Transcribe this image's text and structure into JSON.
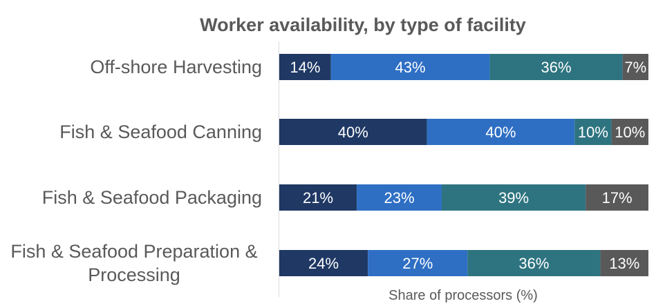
{
  "chart_data": {
    "type": "bar",
    "orientation": "horizontal",
    "stacked": true,
    "title": "Worker availability, by type of facility",
    "xlabel": "Share of processors (%)",
    "ylabel": "",
    "xlim": [
      0,
      100
    ],
    "grid": false,
    "legend": "none",
    "categories": [
      "Off-shore Harvesting",
      "Fish & Seafood Canning",
      "Fish & Seafood Packaging",
      "Fish & Seafood Preparation & Processing"
    ],
    "category_lines": [
      [
        "Off-shore Harvesting"
      ],
      [
        "Fish & Seafood Canning"
      ],
      [
        "Fish & Seafood Packaging"
      ],
      [
        "Fish & Seafood Preparation &",
        "Processing"
      ]
    ],
    "series": [
      {
        "color": "#1f3864",
        "values": [
          14,
          40,
          21,
          24
        ]
      },
      {
        "color": "#2e6fc4",
        "values": [
          43,
          40,
          23,
          27
        ]
      },
      {
        "color": "#2e7480",
        "values": [
          36,
          10,
          39,
          36
        ]
      },
      {
        "color": "#595959",
        "values": [
          7,
          10,
          17,
          13
        ]
      }
    ],
    "value_suffix": "%"
  },
  "colors": {
    "text": "#595959",
    "axis_line": "#d9d9d9",
    "label": "#ffffff"
  }
}
